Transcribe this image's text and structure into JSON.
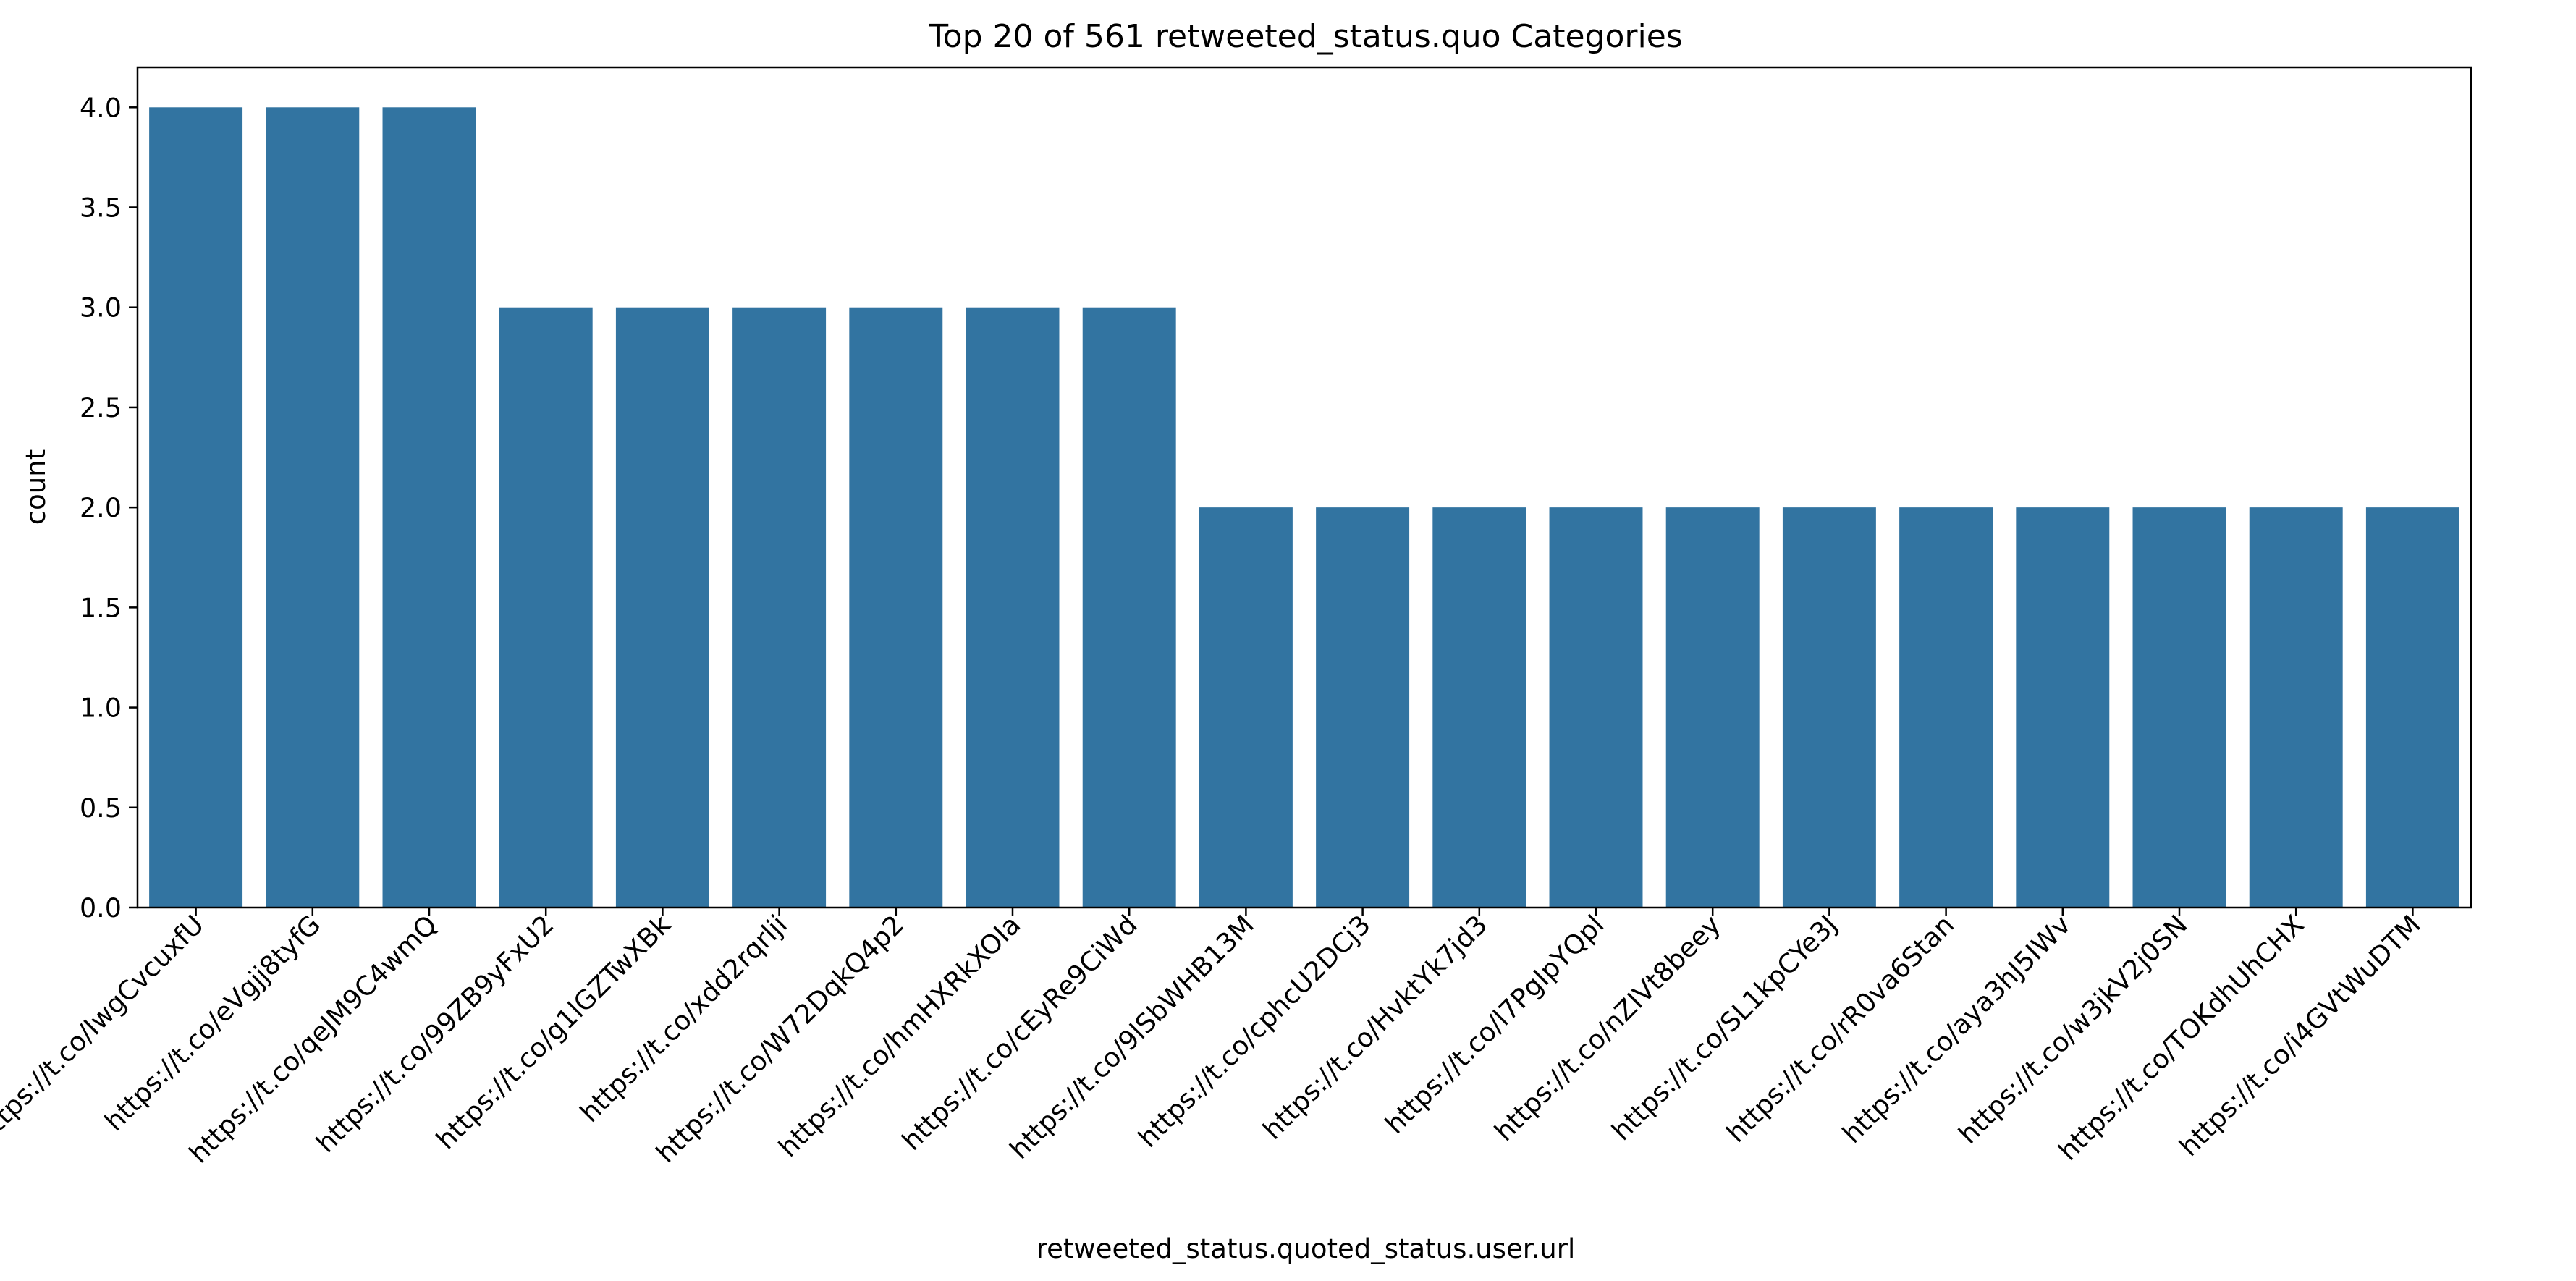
{
  "chart_data": {
    "type": "bar",
    "title": "Top 20 of 561 retweeted_status.quo Categories",
    "xlabel": "retweeted_status.quoted_status.user.url",
    "ylabel": "count",
    "ylim": [
      0,
      4.2
    ],
    "yticks": [
      "0.0",
      "0.5",
      "1.0",
      "1.5",
      "2.0",
      "2.5",
      "3.0",
      "3.5",
      "4.0"
    ],
    "grid": false,
    "bar_color": "#3274a1",
    "categories": [
      "https://t.co/IwgCvcuxfU",
      "https://t.co/eVgjj8tyfG",
      "https://t.co/qeJM9C4wmQ",
      "https://t.co/99ZB9yFxU2",
      "https://t.co/g1lGZTwXBk",
      "https://t.co/xdd2rqrlji",
      "https://t.co/W72DqkQ4p2",
      "https://t.co/hmHXRkXOIa",
      "https://t.co/cEyRe9CiWd",
      "https://t.co/9lSbWHB13M",
      "https://t.co/cphcU2DCj3",
      "https://t.co/HvktYk7jd3",
      "https://t.co/l7PgIpYQpl",
      "https://t.co/nZIVt8beey",
      "https://t.co/SL1kpCYe3J",
      "https://t.co/rR0va6Stan",
      "https://t.co/aya3hJ5IWv",
      "https://t.co/w3jkV2j0SN",
      "https://t.co/TOKdhUhCHX",
      "https://t.co/i4GVtWuDTM"
    ],
    "values": [
      4,
      4,
      4,
      3,
      3,
      3,
      3,
      3,
      3,
      2,
      2,
      2,
      2,
      2,
      2,
      2,
      2,
      2,
      2,
      2
    ]
  }
}
